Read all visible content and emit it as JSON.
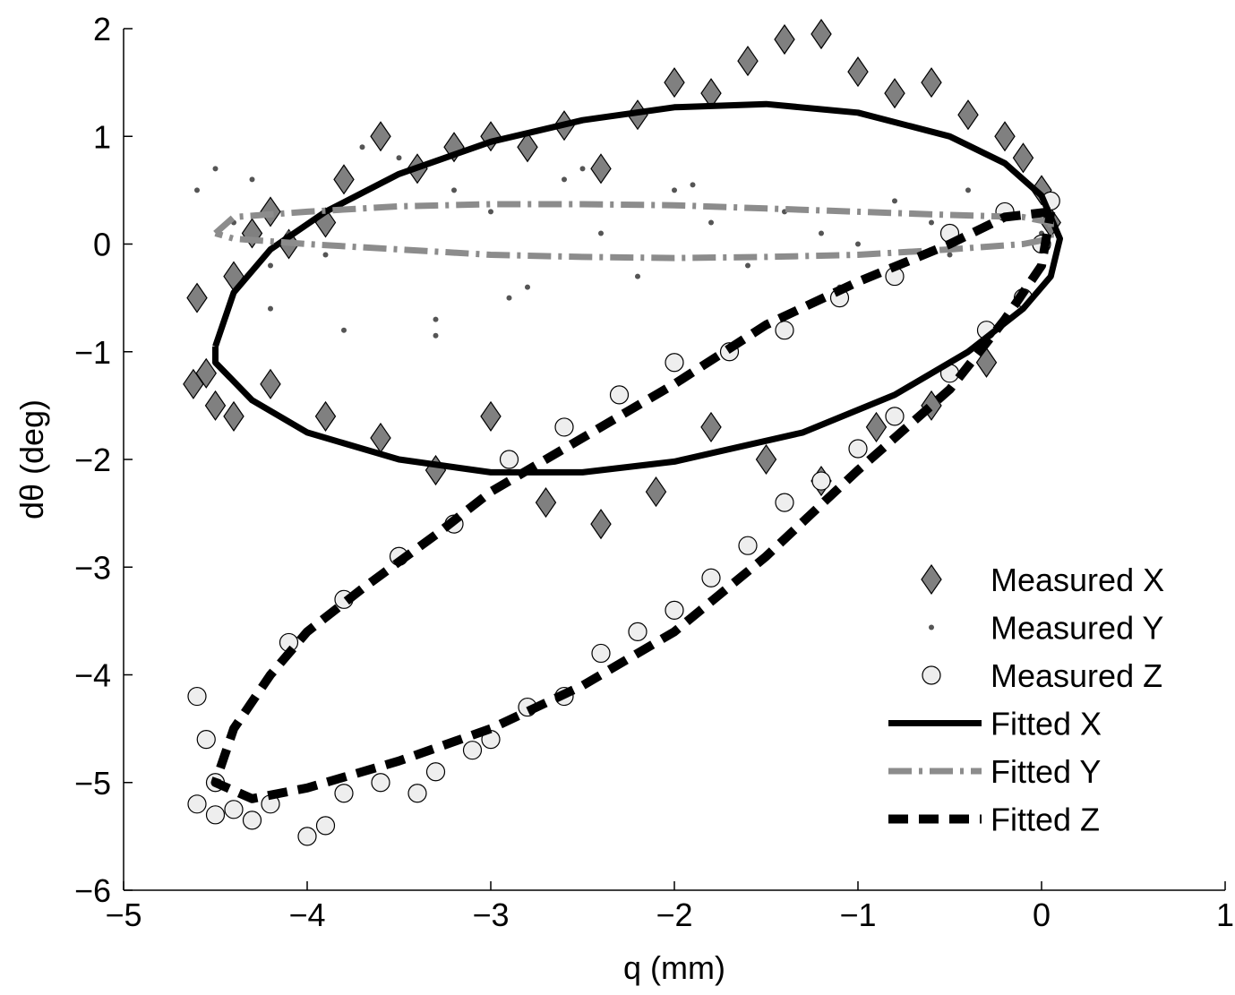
{
  "chart_data": {
    "type": "scatter",
    "xlabel": "q (mm)",
    "ylabel": "dθ (deg)",
    "xlim": [
      -5,
      1
    ],
    "ylim": [
      -6,
      2
    ],
    "xticks": [
      {
        "value": -5,
        "label": "−5"
      },
      {
        "value": -4,
        "label": "−4"
      },
      {
        "value": -3,
        "label": "−3"
      },
      {
        "value": -2,
        "label": "−2"
      },
      {
        "value": -1,
        "label": "−1"
      },
      0,
      1
    ],
    "yticks": [
      {
        "value": -6,
        "label": "−6"
      },
      {
        "value": -5,
        "label": "−5"
      },
      {
        "value": -4,
        "label": "−4"
      },
      {
        "value": -3,
        "label": "−3"
      },
      {
        "value": -2,
        "label": "−2"
      },
      {
        "value": -1,
        "label": "−1"
      },
      0,
      1,
      2
    ],
    "legend": "lower right",
    "series": [
      {
        "name": "Measured X",
        "kind": "marker",
        "marker": "diamond",
        "color": "#808080",
        "x": [
          -4.6,
          -4.55,
          -4.5,
          -4.62,
          -4.4,
          -4.3,
          -4.2,
          -4.1,
          -3.9,
          -3.8,
          -3.6,
          -3.4,
          -3.2,
          -3.0,
          -2.8,
          -2.6,
          -2.4,
          -2.2,
          -2.0,
          -1.8,
          -1.6,
          -1.4,
          -1.2,
          -1.0,
          -0.8,
          -0.6,
          -0.4,
          -0.2,
          -0.1,
          0.0,
          0.05,
          -0.3,
          -0.6,
          -0.9,
          -1.2,
          -1.5,
          -1.8,
          -2.1,
          -2.4,
          -2.7,
          -3.0,
          -3.3,
          -3.6,
          -3.9,
          -4.2,
          -4.4
        ],
        "values": [
          -0.5,
          -1.2,
          -1.5,
          -1.3,
          -0.3,
          0.1,
          0.3,
          0.0,
          0.2,
          0.6,
          1.0,
          0.7,
          0.9,
          1.0,
          0.9,
          1.1,
          0.7,
          1.2,
          1.5,
          1.4,
          1.7,
          1.9,
          1.95,
          1.6,
          1.4,
          1.5,
          1.2,
          1.0,
          0.8,
          0.5,
          0.2,
          -1.1,
          -1.5,
          -1.7,
          -2.2,
          -2.0,
          -1.7,
          -2.3,
          -2.6,
          -2.4,
          -1.6,
          -2.1,
          -1.8,
          -1.6,
          -1.3,
          -1.6
        ]
      },
      {
        "name": "Measured Y",
        "kind": "marker",
        "marker": "dot",
        "color": "#555555",
        "x": [
          -4.6,
          -4.5,
          -4.4,
          -4.3,
          -4.2,
          -4.1,
          -4.0,
          -3.9,
          -3.7,
          -3.5,
          -3.3,
          -3.2,
          -3.0,
          -2.8,
          -2.6,
          -2.4,
          -2.2,
          -2.0,
          -1.8,
          -1.6,
          -1.4,
          -1.2,
          -1.0,
          -0.8,
          -0.6,
          -0.4,
          -0.2,
          0.0,
          -3.3,
          -2.9,
          -2.5,
          -3.8,
          -4.2,
          -1.9,
          -1.1,
          -0.5
        ],
        "values": [
          0.5,
          0.7,
          0.2,
          0.6,
          -0.2,
          0.1,
          0.3,
          -0.1,
          0.9,
          0.8,
          -0.7,
          0.5,
          0.3,
          -0.4,
          0.6,
          0.1,
          -0.3,
          0.5,
          0.2,
          -0.2,
          0.3,
          0.1,
          0.0,
          0.4,
          0.2,
          0.5,
          0.3,
          0.1,
          -0.85,
          -0.5,
          0.7,
          -0.8,
          -0.6,
          0.55,
          -0.4,
          -0.1
        ]
      },
      {
        "name": "Measured Z",
        "kind": "marker",
        "marker": "circle",
        "color": "#eeeeee",
        "x": [
          -4.6,
          -4.55,
          -4.5,
          -4.6,
          -4.5,
          -4.4,
          -4.3,
          -4.2,
          -4.0,
          -3.9,
          -3.8,
          -3.6,
          -3.4,
          -3.3,
          -3.1,
          -3.0,
          -2.8,
          -2.6,
          -2.4,
          -2.2,
          -2.0,
          -1.8,
          -1.6,
          -1.4,
          -1.2,
          -1.0,
          -0.8,
          -0.5,
          -0.3,
          -0.1,
          0.0,
          0.05,
          -0.2,
          -0.5,
          -0.8,
          -1.1,
          -1.4,
          -1.7,
          -2.0,
          -2.3,
          -2.6,
          -2.9,
          -3.2,
          -3.5,
          -3.8,
          -4.1
        ],
        "values": [
          -4.2,
          -4.6,
          -5.0,
          -5.2,
          -5.3,
          -5.25,
          -5.35,
          -5.2,
          -5.5,
          -5.4,
          -5.1,
          -5.0,
          -5.1,
          -4.9,
          -4.7,
          -4.6,
          -4.3,
          -4.2,
          -3.8,
          -3.6,
          -3.4,
          -3.1,
          -2.8,
          -2.4,
          -2.2,
          -1.9,
          -1.6,
          -1.2,
          -0.8,
          -0.5,
          0.0,
          0.4,
          0.3,
          0.1,
          -0.3,
          -0.5,
          -0.8,
          -1.0,
          -1.1,
          -1.4,
          -1.7,
          -2.0,
          -2.6,
          -2.9,
          -3.3,
          -3.7
        ]
      },
      {
        "name": "Fitted X",
        "kind": "line",
        "line_style": "solid",
        "color": "#000000",
        "x": [
          -4.5,
          -4.4,
          -4.2,
          -3.9,
          -3.5,
          -3.0,
          -2.5,
          -2.0,
          -1.5,
          -1.0,
          -0.5,
          -0.2,
          0.0,
          0.1,
          0.05,
          -0.1,
          -0.4,
          -0.8,
          -1.3,
          -2.0,
          -2.5,
          -3.0,
          -3.5,
          -4.0,
          -4.3,
          -4.5,
          -4.5
        ],
        "values": [
          -0.95,
          -0.45,
          -0.05,
          0.3,
          0.65,
          0.95,
          1.15,
          1.27,
          1.3,
          1.22,
          1.0,
          0.75,
          0.45,
          0.05,
          -0.3,
          -0.6,
          -1.0,
          -1.4,
          -1.75,
          -2.02,
          -2.12,
          -2.12,
          -2.0,
          -1.75,
          -1.45,
          -1.1,
          -0.95
        ]
      },
      {
        "name": "Fitted Y",
        "kind": "line",
        "line_style": "dashdot",
        "color": "#8c8c8c",
        "x": [
          -4.5,
          -4.4,
          -4.0,
          -3.5,
          -3.0,
          -2.5,
          -2.0,
          -1.5,
          -1.0,
          -0.5,
          -0.1,
          0.05,
          0.05,
          -0.1,
          -0.5,
          -1.0,
          -1.5,
          -2.0,
          -2.5,
          -3.0,
          -3.5,
          -4.0,
          -4.4,
          -4.5
        ],
        "values": [
          0.1,
          0.25,
          0.3,
          0.35,
          0.37,
          0.37,
          0.36,
          0.33,
          0.3,
          0.27,
          0.25,
          0.2,
          0.05,
          0.0,
          -0.05,
          -0.1,
          -0.12,
          -0.13,
          -0.12,
          -0.1,
          -0.05,
          0.0,
          0.05,
          0.1
        ]
      },
      {
        "name": "Fitted Z",
        "kind": "line",
        "line_style": "dashed",
        "color": "#000000",
        "x": [
          0.05,
          -0.2,
          -0.5,
          -1.0,
          -1.5,
          -2.0,
          -2.5,
          -3.0,
          -3.3,
          -3.7,
          -4.0,
          -4.2,
          -4.4,
          -4.5,
          -4.3,
          -4.0,
          -3.5,
          -3.0,
          -2.5,
          -2.0,
          -1.5,
          -1.0,
          -0.5,
          -0.2,
          0.0,
          0.05
        ],
        "values": [
          0.3,
          0.25,
          0.0,
          -0.35,
          -0.75,
          -1.3,
          -1.8,
          -2.3,
          -2.7,
          -3.2,
          -3.6,
          -4.0,
          -4.5,
          -5.0,
          -5.15,
          -5.05,
          -4.8,
          -4.5,
          -4.1,
          -3.6,
          -2.9,
          -2.1,
          -1.35,
          -0.7,
          -0.2,
          0.3
        ]
      }
    ]
  }
}
